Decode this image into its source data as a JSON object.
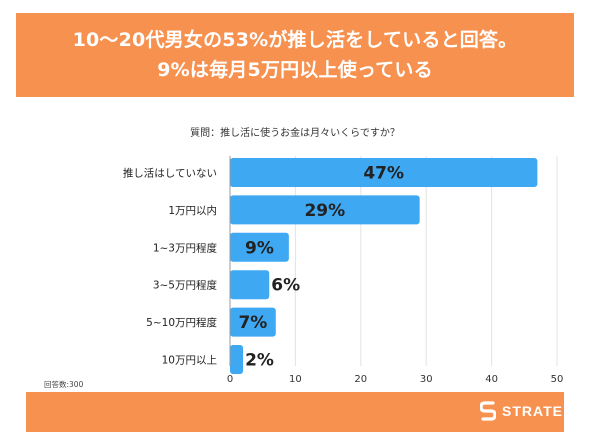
{
  "header": {
    "line1": "10〜20代男女の53%が推し活をしていると回答。",
    "line2": "9%は毎月5万円以上使っている"
  },
  "question": "質問：推し活に使うお金は月々いくらですか？",
  "respondents": "回答数:300",
  "logo": {
    "text": "STRATE",
    "icon": "strate-s-logo-icon"
  },
  "colors": {
    "header": "#F7914F",
    "bar": "#3EA8F2",
    "footer": "#F7914F"
  },
  "chart_data": {
    "type": "bar",
    "orientation": "horizontal",
    "categories": [
      "推し活はしていない",
      "1万円以内",
      "1~3万円程度",
      "3~5万円程度",
      "5~10万円程度",
      "10万円以上"
    ],
    "values": [
      47,
      29,
      9,
      6,
      7,
      2
    ],
    "value_labels": [
      "47%",
      "29%",
      "9%",
      "6%",
      "7%",
      "2%"
    ],
    "xlim": [
      0,
      50
    ],
    "xticks": [
      "0",
      "10",
      "20",
      "30",
      "40",
      "50"
    ],
    "grid": true
  }
}
